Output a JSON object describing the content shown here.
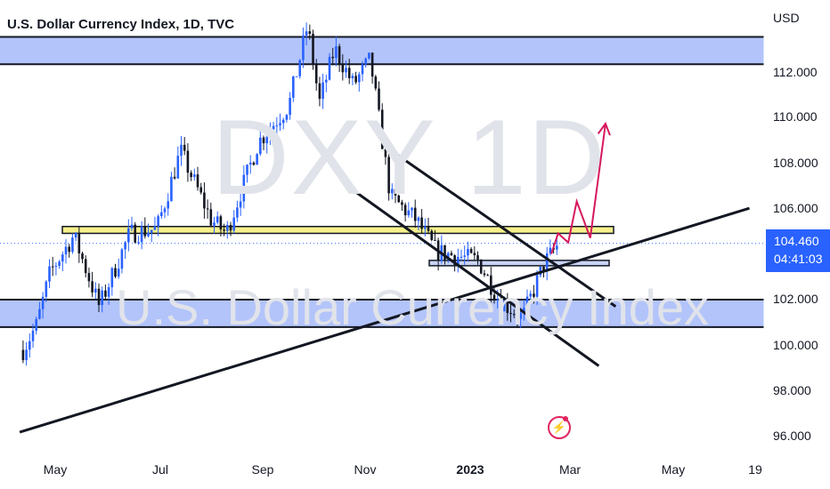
{
  "header": {
    "title": "U.S. Dollar Currency Index, 1D, TVC"
  },
  "watermark": {
    "symbol": "DXY 1D",
    "name": "U.S. Dollar Currency Index"
  },
  "price_label": {
    "price": "104.460",
    "countdown": "04:41:03"
  },
  "colors": {
    "up": "#2962ff",
    "down": "#131722",
    "zone_fill": "#b2c4fa",
    "resistance_fill": "#f6f08c",
    "arrow": "#d6185e",
    "price_line": "#2962ff"
  },
  "icons": {
    "lightning": "lightning-icon"
  },
  "chart_data": {
    "type": "candlestick",
    "currency": "USD",
    "y_ticks": [
      "112.000",
      "110.000",
      "108.000",
      "106.000",
      "102.000",
      "100.000",
      "98.000",
      "96.000"
    ],
    "x_ticks": [
      "May",
      "Jul",
      "Sep",
      "Nov",
      "2023",
      "Mar",
      "May",
      "19"
    ],
    "ylim": [
      95.2,
      113.6
    ],
    "last_price": 104.46,
    "series_path": [
      [
        "2022-04-12",
        99.8
      ],
      [
        "2022-04-20",
        100.9
      ],
      [
        "2022-04-28",
        103.2
      ],
      [
        "2022-05-12",
        104.8
      ],
      [
        "2022-05-27",
        101.7
      ],
      [
        "2022-06-14",
        104.9
      ],
      [
        "2022-06-30",
        105.1
      ],
      [
        "2022-07-14",
        108.5
      ],
      [
        "2022-08-01",
        105.5
      ],
      [
        "2022-08-10",
        104.9
      ],
      [
        "2022-08-29",
        108.9
      ],
      [
        "2022-09-16",
        110.5
      ],
      [
        "2022-09-27",
        114.0
      ],
      [
        "2022-10-04",
        110.6
      ],
      [
        "2022-10-13",
        113.0
      ],
      [
        "2022-10-24",
        111.4
      ],
      [
        "2022-11-03",
        112.5
      ],
      [
        "2022-11-15",
        106.5
      ],
      [
        "2022-11-30",
        105.5
      ],
      [
        "2022-12-12",
        104.1
      ],
      [
        "2023-01-06",
        103.7
      ],
      [
        "2023-01-18",
        102.0
      ],
      [
        "2023-02-01",
        101.2
      ],
      [
        "2023-02-14",
        103.6
      ],
      [
        "2023-02-23",
        104.5
      ]
    ],
    "zones": [
      {
        "name": "supply",
        "from": 112.3,
        "to": 113.5
      },
      {
        "name": "demand",
        "from": 100.8,
        "to": 102.0
      }
    ],
    "resistance_band": [
      104.9,
      105.2
    ],
    "levels": [
      103.6
    ],
    "trendline": [
      [
        "2022-04-10",
        96.2
      ],
      [
        "2023-06-15",
        106.0
      ]
    ],
    "channel_upper": [
      [
        "2022-11-10",
        108.8
      ],
      [
        "2023-03-28",
        101.7
      ]
    ],
    "channel_lower": [
      [
        "2022-10-20",
        107.0
      ],
      [
        "2023-03-18",
        99.1
      ]
    ],
    "projection": [
      [
        "2023-02-18",
        104.0
      ],
      [
        "2023-02-22",
        104.9
      ],
      [
        "2023-02-28",
        104.5
      ],
      [
        "2023-03-05",
        106.3
      ],
      [
        "2023-03-13",
        104.7
      ],
      [
        "2023-03-22",
        109.7
      ]
    ]
  }
}
